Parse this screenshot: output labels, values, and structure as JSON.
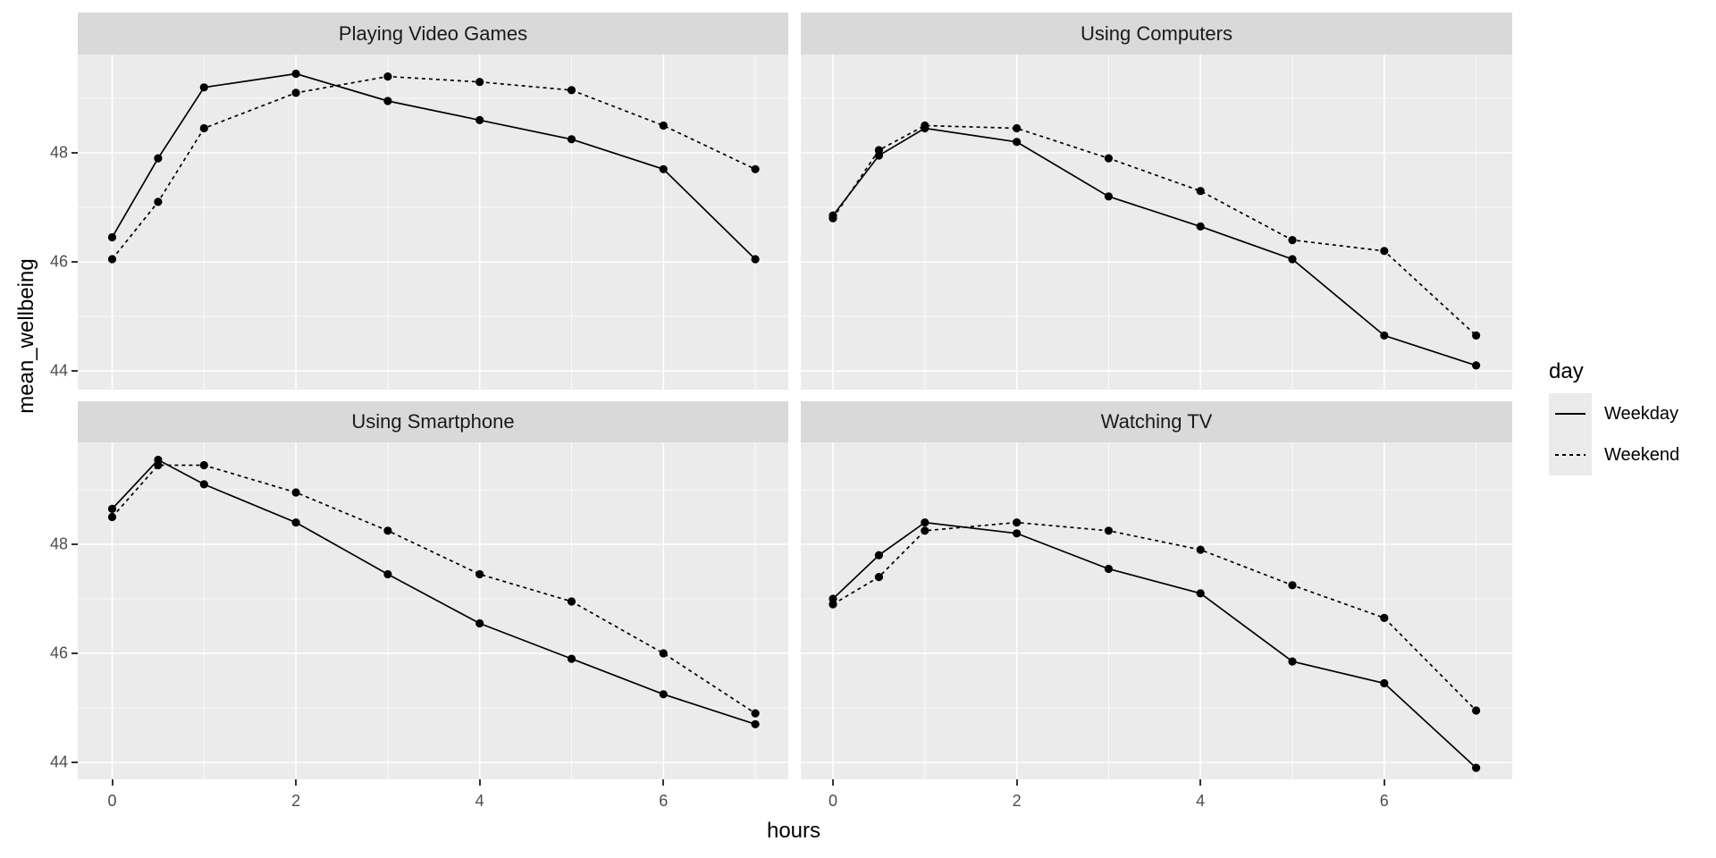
{
  "chart_data": {
    "type": "line",
    "xlabel": "hours",
    "ylabel": "mean_wellbeing",
    "x": [
      0,
      0.5,
      1,
      2,
      3,
      4,
      5,
      6,
      7
    ],
    "x_axis": {
      "major_ticks": [
        0,
        2,
        4,
        6
      ],
      "minor_ticks": [
        1,
        3,
        5,
        7
      ],
      "tick_labels": [
        "0",
        "2",
        "4",
        "6"
      ],
      "range": [
        -0.37,
        7.37
      ]
    },
    "y_axis": {
      "major_ticks": [
        44,
        46,
        48
      ],
      "minor_ticks": [
        45,
        47,
        49
      ],
      "tick_labels": [
        "44",
        "46",
        "48"
      ],
      "range": [
        43.7,
        49.8
      ]
    },
    "grid": "on",
    "legend_position": "right",
    "facets": [
      {
        "title": "Playing Video Games",
        "series": [
          {
            "name": "Weekday",
            "linestyle": "solid",
            "values": [
              46.45,
              47.9,
              49.2,
              49.45,
              48.95,
              48.6,
              48.25,
              47.7,
              46.05
            ]
          },
          {
            "name": "Weekend",
            "linestyle": "dashed",
            "values": [
              46.05,
              47.1,
              48.45,
              49.1,
              49.4,
              49.3,
              49.15,
              48.5,
              47.7
            ]
          }
        ]
      },
      {
        "title": "Using Computers",
        "series": [
          {
            "name": "Weekday",
            "linestyle": "solid",
            "values": [
              46.85,
              47.95,
              48.45,
              48.2,
              47.2,
              46.65,
              46.05,
              44.65,
              44.1
            ]
          },
          {
            "name": "Weekend",
            "linestyle": "dashed",
            "values": [
              46.8,
              48.05,
              48.5,
              48.45,
              47.9,
              47.3,
              46.4,
              46.2,
              44.65
            ]
          }
        ]
      },
      {
        "title": "Using Smartphone",
        "series": [
          {
            "name": "Weekday",
            "linestyle": "solid",
            "values": [
              48.65,
              49.55,
              49.1,
              48.4,
              47.45,
              46.55,
              45.9,
              45.25,
              44.7
            ]
          },
          {
            "name": "Weekend",
            "linestyle": "dashed",
            "values": [
              48.5,
              49.45,
              49.45,
              48.95,
              48.25,
              47.45,
              46.95,
              46.0,
              44.9
            ]
          }
        ]
      },
      {
        "title": "Watching TV",
        "series": [
          {
            "name": "Weekday",
            "linestyle": "solid",
            "values": [
              47.0,
              47.8,
              48.4,
              48.2,
              47.55,
              47.1,
              45.85,
              45.45,
              43.9
            ]
          },
          {
            "name": "Weekend",
            "linestyle": "dashed",
            "values": [
              46.9,
              47.4,
              48.25,
              48.4,
              48.25,
              47.9,
              47.25,
              46.65,
              44.95
            ]
          }
        ]
      }
    ],
    "legend": {
      "title": "day",
      "entries": [
        {
          "label": "Weekday",
          "linestyle": "solid"
        },
        {
          "label": "Weekend",
          "linestyle": "dashed"
        }
      ]
    }
  },
  "colors": {
    "panel_background": "#ebebeb",
    "strip_background": "#d9d9d9",
    "gridline": "#ffffff",
    "line": "#000000",
    "point": "#000000",
    "tick_label": "#4d4d4d",
    "axis_title": "#000000"
  }
}
